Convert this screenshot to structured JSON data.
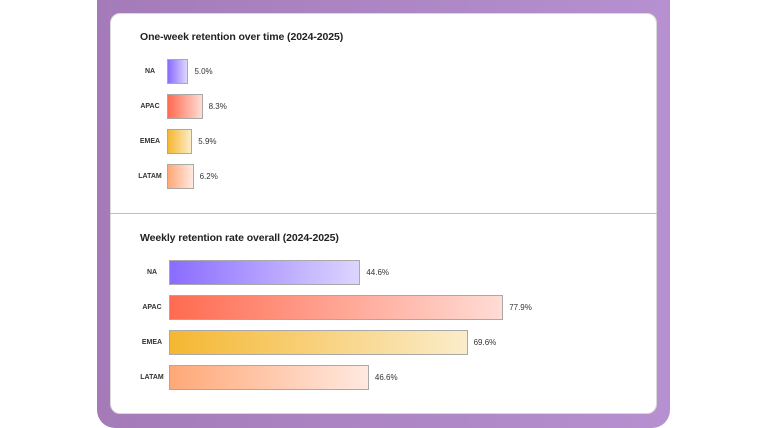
{
  "chart_data": [
    {
      "type": "bar",
      "orientation": "horizontal",
      "title": "One-week retention over time (2024-2025)",
      "categories": [
        "NA",
        "APAC",
        "EMEA",
        "LATAM"
      ],
      "values": [
        5.0,
        8.3,
        5.9,
        6.2
      ],
      "value_labels": [
        "5.0%",
        "8.3%",
        "5.9%",
        "6.2%"
      ],
      "grid": false
    },
    {
      "type": "bar",
      "orientation": "horizontal",
      "title": "Weekly retention rate overall  (2024-2025)",
      "categories": [
        "NA",
        "APAC",
        "EMEA",
        "LATAM"
      ],
      "values": [
        44.6,
        77.9,
        69.6,
        46.6
      ],
      "value_labels": [
        "44.6%",
        "77.9%",
        "69.6%",
        "46.6%"
      ],
      "grid": false
    }
  ],
  "colors": {
    "NA": [
      "#8a6cff",
      "#ddd5ff"
    ],
    "APAC": [
      "#ff6b50",
      "#ffdcd5"
    ],
    "EMEA": [
      "#f5b731",
      "#fbecca"
    ],
    "LATAM": [
      "#ffa877",
      "#ffe9e0"
    ],
    "frame": "#a47bb8"
  }
}
